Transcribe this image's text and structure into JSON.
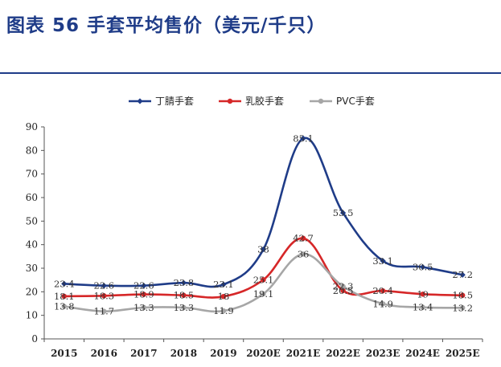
{
  "header": {
    "title": "图表 56   手套平均售价（美元/千只）"
  },
  "chart_data": {
    "type": "line",
    "categories": [
      "2015",
      "2016",
      "2017",
      "2018",
      "2019",
      "2020E",
      "2021E",
      "2022E",
      "2023E",
      "2024E",
      "2025E"
    ],
    "ylim": [
      0,
      90
    ],
    "yticks": [
      "0",
      "10",
      "20",
      "30",
      "40",
      "50",
      "60",
      "70",
      "80",
      "90"
    ],
    "grid": false,
    "legend_position": "top",
    "series": [
      {
        "name": "丁腈手套",
        "color": "#1f3c88",
        "marker": "diamond",
        "values": [
          23.4,
          22.6,
          22.6,
          23.8,
          23.1,
          38,
          85.1,
          53.5,
          33.1,
          30.5,
          27.2
        ],
        "labels": [
          "23.4",
          "22.6",
          "22.6",
          "23.8",
          "23.1",
          "38",
          "85.1",
          "53.5",
          "33.1",
          "30.5",
          "27.2"
        ]
      },
      {
        "name": "乳胶手套",
        "color": "#d62728",
        "marker": "circle",
        "values": [
          18.1,
          18.3,
          18.9,
          18.5,
          18,
          25.1,
          42.7,
          20.5,
          20.4,
          19,
          18.5
        ],
        "labels": [
          "18.1",
          "18.3",
          "18.9",
          "18.5",
          "18",
          "25.1",
          "42.7",
          "20.5",
          "20.4",
          "19",
          "18.5"
        ]
      },
      {
        "name": "PVC手套",
        "color": "#a6a6a6",
        "marker": "circle",
        "values": [
          13.8,
          11.7,
          13.3,
          13.3,
          11.9,
          19.1,
          36,
          22.3,
          14.9,
          13.4,
          13.2
        ],
        "labels": [
          "13.8",
          "11.7",
          "13.3",
          "13.3",
          "11.9",
          "19.1",
          "36",
          "22.3",
          "14.9",
          "13.4",
          "13.2"
        ]
      }
    ]
  }
}
